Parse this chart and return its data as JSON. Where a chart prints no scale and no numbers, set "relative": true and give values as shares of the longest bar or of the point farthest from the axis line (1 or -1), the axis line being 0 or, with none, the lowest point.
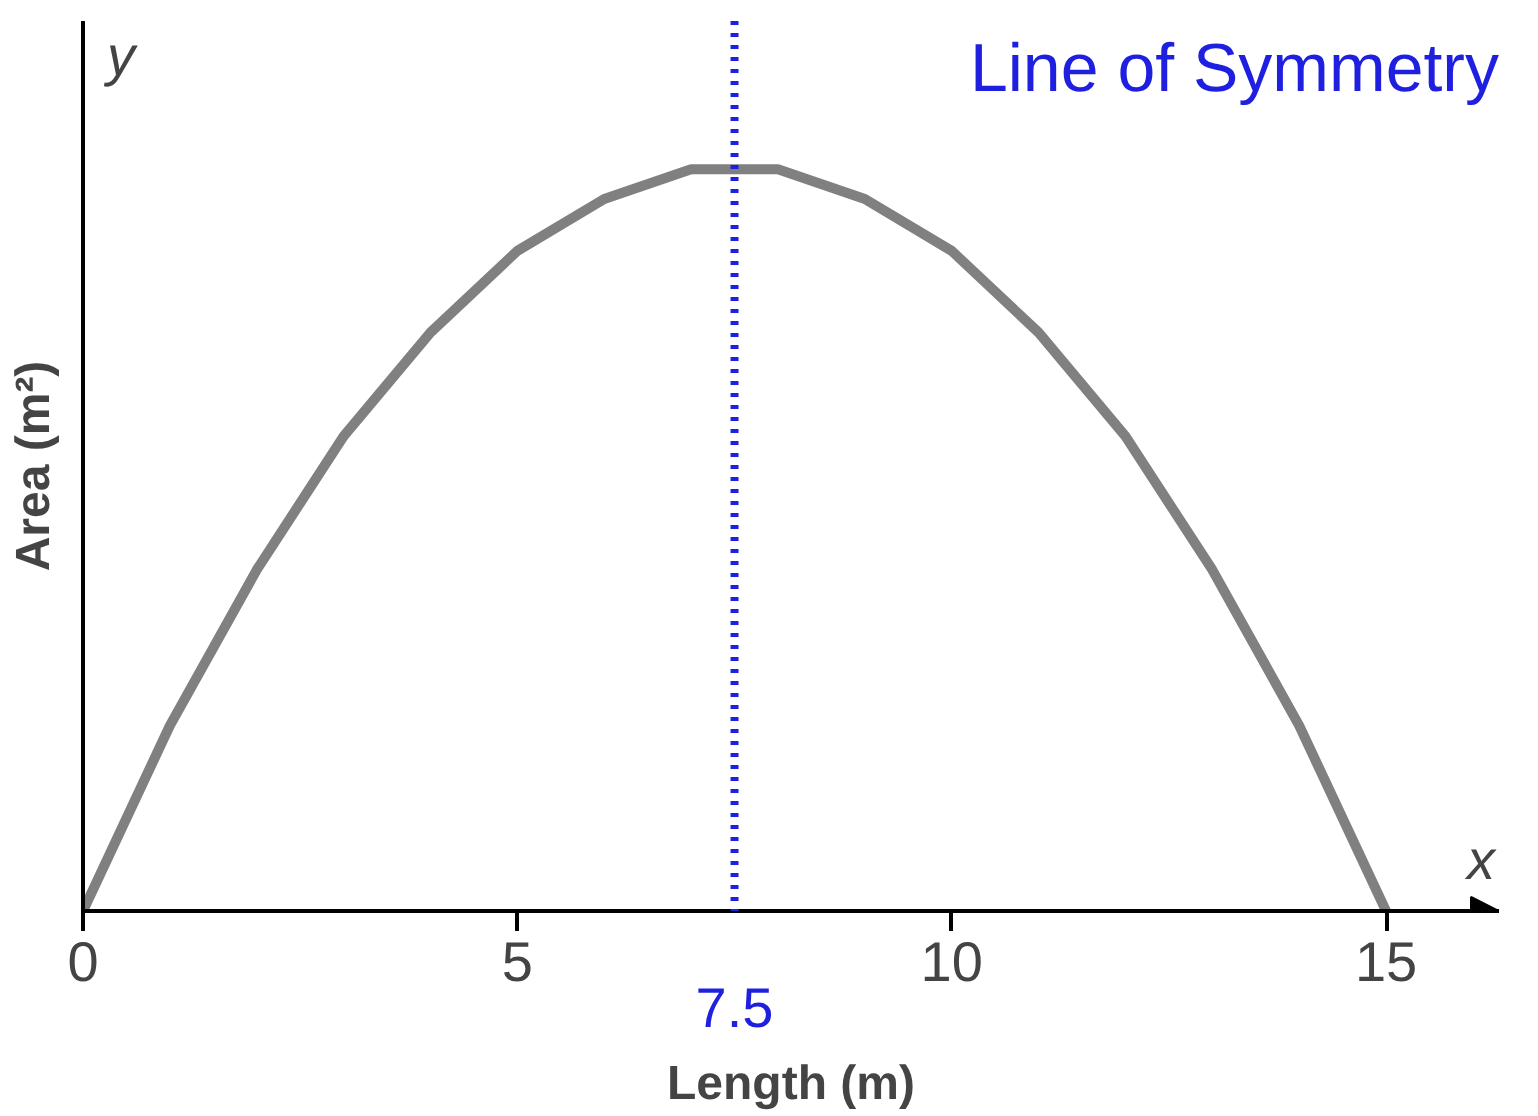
{
  "chart_data": {
    "type": "line",
    "xlabel": "Length (m)",
    "ylabel": "Area (m²)",
    "relative": true,
    "x": [
      0,
      1,
      2,
      3,
      4,
      5,
      6,
      7,
      7.5,
      8,
      9,
      10,
      11,
      12,
      13,
      14,
      15
    ],
    "series": [
      {
        "color": "#808080",
        "values": [
          0,
          0.25,
          0.46,
          0.64,
          0.78,
          0.89,
          0.96,
          1.0,
          1.0,
          1.0,
          0.96,
          0.89,
          0.78,
          0.64,
          0.46,
          0.25,
          0
        ]
      }
    ],
    "xlim": [
      0,
      16.3
    ],
    "xticks": [
      0,
      5,
      10,
      15
    ],
    "grid": false,
    "marker": "none",
    "line_style": "solid",
    "ref_lines": [
      {
        "axis": "x",
        "value": 7.5,
        "label": "7.5",
        "color": "#1f1fe0",
        "line_style": "dotted"
      }
    ],
    "annotations": [
      "Line of Symmetry",
      "x",
      "y"
    ]
  }
}
